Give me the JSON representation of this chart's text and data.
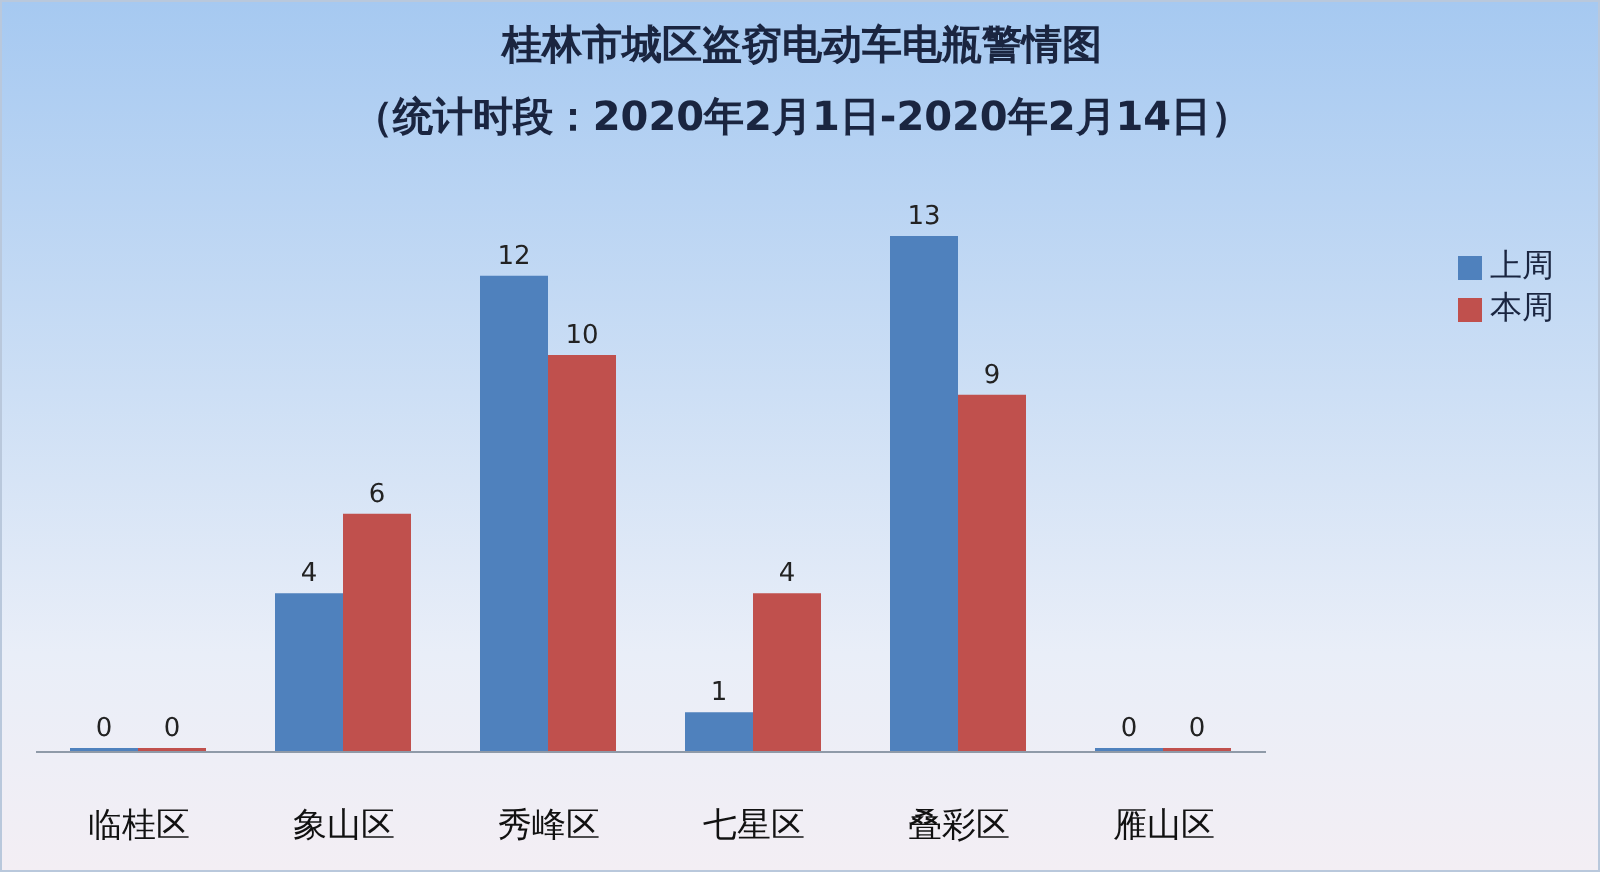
{
  "chart_data": {
    "type": "bar",
    "title": "桂林市城区盗窃电动车电瓶警情图",
    "subtitle": "（统计时段：2020年2月1日-2020年2月14日）",
    "categories": [
      "临桂区",
      "象山区",
      "秀峰区",
      "七星区",
      "叠彩区",
      "雁山区"
    ],
    "series": [
      {
        "name": "上周",
        "color": "#4f81bd",
        "values": [
          0,
          4,
          12,
          1,
          13,
          0
        ]
      },
      {
        "name": "本周",
        "color": "#c0504d",
        "values": [
          0,
          6,
          10,
          4,
          9,
          0
        ]
      }
    ],
    "data_labels": true,
    "legend": "top right",
    "tick_labels": "x"
  }
}
